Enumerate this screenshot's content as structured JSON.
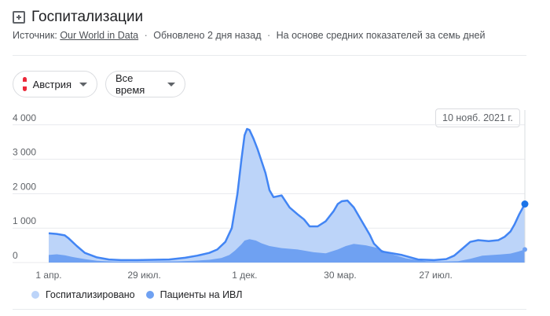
{
  "header": {
    "title": "Госпитализации",
    "source_label": "Источник:",
    "source_link": "Our World in Data",
    "updated": "Обновлено 2 дня назад",
    "basis": "На основе средних показателей за семь дней"
  },
  "filters": {
    "country": "Австрия",
    "country_flag_colors": [
      "#ed2939",
      "#ffffff",
      "#ed2939"
    ],
    "period": "Все время"
  },
  "tooltip": {
    "date": "10 нояб. 2021 г."
  },
  "legend": {
    "hospitalized": "Госпитализировано",
    "ventilated": "Пациенты на ИВЛ"
  },
  "colors": {
    "hospitalized_fill": "#bcd4f9",
    "hospitalized_line": "#4285f4",
    "ventilated_fill": "#6fa1f2",
    "accent": "#1a73e8"
  },
  "chart_data": {
    "type": "area",
    "x_ticks": [
      "1 апр.",
      "29 июл.",
      "1 дек.",
      "30 мар.",
      "27 июл."
    ],
    "x_tick_day": [
      0,
      119,
      244,
      363,
      482
    ],
    "y_ticks": [
      "0",
      "1 000",
      "2 000",
      "3 000",
      "4 000"
    ],
    "ylim": [
      0,
      4200
    ],
    "grid": true,
    "legend_position": "bottom-left",
    "series": [
      {
        "name": "Госпитализировано",
        "day": [
          0,
          10,
          20,
          25,
          35,
          45,
          60,
          75,
          90,
          110,
          130,
          150,
          170,
          185,
          200,
          210,
          220,
          228,
          235,
          240,
          244,
          247,
          250,
          255,
          260,
          270,
          275,
          280,
          290,
          300,
          310,
          318,
          325,
          335,
          345,
          355,
          360,
          365,
          372,
          380,
          390,
          400,
          405,
          415,
          425,
          440,
          460,
          480,
          495,
          505,
          515,
          525,
          535,
          548,
          560,
          568,
          575,
          580,
          586,
          593
        ],
        "values": [
          850,
          830,
          790,
          700,
          480,
          280,
          150,
          90,
          70,
          70,
          80,
          90,
          140,
          200,
          280,
          380,
          600,
          1000,
          2000,
          3000,
          3700,
          3880,
          3850,
          3600,
          3300,
          2600,
          2100,
          1900,
          1950,
          1600,
          1400,
          1250,
          1050,
          1050,
          1200,
          1500,
          1700,
          1780,
          1800,
          1600,
          1200,
          800,
          550,
          320,
          280,
          220,
          90,
          70,
          100,
          200,
          400,
          600,
          650,
          620,
          650,
          750,
          900,
          1100,
          1400,
          1700
        ]
      },
      {
        "name": "Пациенты на ИВЛ",
        "day": [
          0,
          10,
          20,
          30,
          45,
          60,
          80,
          100,
          130,
          160,
          180,
          200,
          215,
          225,
          232,
          240,
          244,
          250,
          258,
          265,
          275,
          290,
          310,
          330,
          345,
          360,
          370,
          380,
          395,
          410,
          425,
          445,
          470,
          490,
          510,
          525,
          540,
          560,
          575,
          585,
          593
        ],
        "values": [
          220,
          240,
          210,
          160,
          100,
          50,
          30,
          25,
          30,
          35,
          50,
          80,
          130,
          220,
          350,
          530,
          640,
          680,
          640,
          560,
          480,
          420,
          380,
          300,
          270,
          380,
          480,
          540,
          500,
          420,
          260,
          120,
          40,
          30,
          40,
          110,
          200,
          230,
          260,
          320,
          380
        ]
      }
    ]
  }
}
